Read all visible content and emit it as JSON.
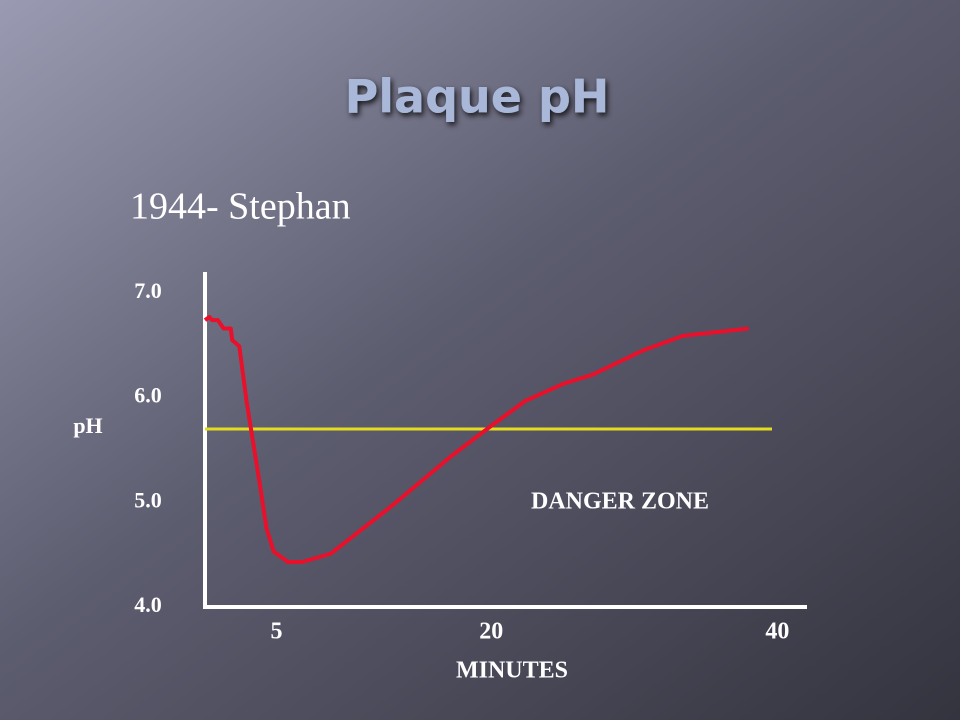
{
  "chart_data": {
    "type": "line",
    "title": "Plaque pH",
    "subtitle": "1944- Stephan",
    "y_label": "pH",
    "x_label": "MINUTES",
    "annotation": "DANGER ZONE",
    "threshold": 5.7,
    "threshold_color": "#e4dc1c",
    "xlim": [
      0,
      42
    ],
    "xticks": [
      5,
      20,
      40
    ],
    "ylim": [
      4,
      7.2
    ],
    "yticks": [
      {
        "value": 7,
        "label": "7.0"
      },
      {
        "value": 6,
        "label": "6.0"
      },
      {
        "value": 5,
        "label": "5.0"
      },
      {
        "value": 4,
        "label": "4.0"
      }
    ],
    "series": [
      {
        "name": "pH",
        "color": "#e8102a",
        "x": [
          0,
          0.3,
          0.5,
          0.9,
          1.3,
          1.8,
          1.9,
          2.4,
          2.9,
          3.8,
          4.3,
          4.8,
          5.8,
          6.8,
          8.8,
          13,
          17.2,
          20,
          22.4,
          25,
          27.1,
          30.6,
          33.4,
          38
        ],
        "values": [
          6.74,
          6.77,
          6.74,
          6.74,
          6.66,
          6.66,
          6.55,
          6.49,
          5.97,
          5.2,
          4.75,
          4.53,
          4.43,
          4.43,
          4.51,
          4.96,
          5.44,
          5.73,
          5.97,
          6.13,
          6.22,
          6.45,
          6.59,
          6.66
        ]
      }
    ]
  }
}
